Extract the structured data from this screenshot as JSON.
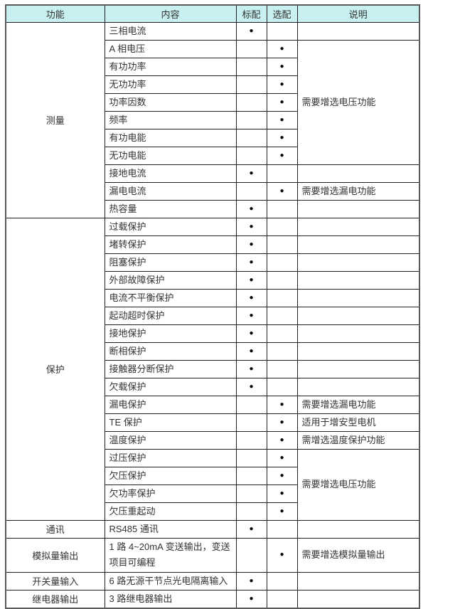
{
  "colors": {
    "header_bg": "#c8f0f0",
    "grid_border": "#1f1f1f",
    "outer_border": "#5a5a5a",
    "text": "#333333",
    "bullet": "#000000"
  },
  "table": {
    "headers": {
      "function": "功能",
      "content": "内容",
      "standard": "标配",
      "optional": "选配",
      "description": "说明"
    },
    "rows": [
      {
        "group": "测量",
        "content": "三相电流",
        "std": "●",
        "opt": "",
        "desc": ""
      },
      {
        "content": "A 相电压",
        "std": "",
        "opt": "●",
        "desc": "需要增选电压功能"
      },
      {
        "content": "有功功率",
        "std": "",
        "opt": "●"
      },
      {
        "content": "无功功率",
        "std": "",
        "opt": "●"
      },
      {
        "content": "功率因数",
        "std": "",
        "opt": "●"
      },
      {
        "content": "频率",
        "std": "",
        "opt": "●"
      },
      {
        "content": "有功电能",
        "std": "",
        "opt": "●"
      },
      {
        "content": "无功电能",
        "std": "",
        "opt": "●"
      },
      {
        "content": "接地电流",
        "std": "●",
        "opt": "",
        "desc": ""
      },
      {
        "content": "漏电电流",
        "std": "",
        "opt": "●",
        "desc": "需要增选漏电功能"
      },
      {
        "content": "热容量",
        "std": "●",
        "opt": "",
        "desc": ""
      },
      {
        "group": "保护",
        "content": "过载保护",
        "std": "●",
        "opt": "",
        "desc": ""
      },
      {
        "content": "堵转保护",
        "std": "●",
        "opt": "",
        "desc": ""
      },
      {
        "content": "阻塞保护",
        "std": "●",
        "opt": "",
        "desc": ""
      },
      {
        "content": "外部故障保护",
        "std": "●",
        "opt": "",
        "desc": ""
      },
      {
        "content": "电流不平衡保护",
        "std": "●",
        "opt": "",
        "desc": ""
      },
      {
        "content": "起动超时保护",
        "std": "●",
        "opt": "",
        "desc": ""
      },
      {
        "content": "接地保护",
        "std": "●",
        "opt": "",
        "desc": ""
      },
      {
        "content": "断相保护",
        "std": "●",
        "opt": "",
        "desc": ""
      },
      {
        "content": "接触器分断保护",
        "std": "●",
        "opt": "",
        "desc": ""
      },
      {
        "content": "欠载保护",
        "std": "●",
        "opt": "",
        "desc": ""
      },
      {
        "content": "漏电保护",
        "std": "",
        "opt": "●",
        "desc": "需要增选漏电功能"
      },
      {
        "content": "TE 保护",
        "std": "",
        "opt": "●",
        "desc": "适用于增安型电机"
      },
      {
        "content": "温度保护",
        "std": "",
        "opt": "●",
        "desc": "需增选温度保护功能"
      },
      {
        "content": "过压保护",
        "std": "",
        "opt": "●",
        "desc": "需要增选电压功能"
      },
      {
        "content": "欠压保护",
        "std": "",
        "opt": "●"
      },
      {
        "content": "欠功率保护",
        "std": "",
        "opt": "●"
      },
      {
        "content": "欠压重起动",
        "std": "",
        "opt": "●"
      },
      {
        "group": "通讯",
        "content": "RS485 通讯",
        "std": "●",
        "opt": "",
        "desc": ""
      },
      {
        "group": "模拟量输出",
        "content": "1 路 4~20mA 变送输出，变送项目可编程",
        "std": "",
        "opt": "●",
        "desc": "需要增选模拟量输出"
      },
      {
        "group": "开关量输入",
        "content": "6 路无源干节点光电隔离输入",
        "std": "●",
        "opt": "",
        "desc": ""
      },
      {
        "group": "继电器输出",
        "content": "3 路继电器输出",
        "std": "●",
        "opt": "",
        "desc": ""
      }
    ]
  }
}
